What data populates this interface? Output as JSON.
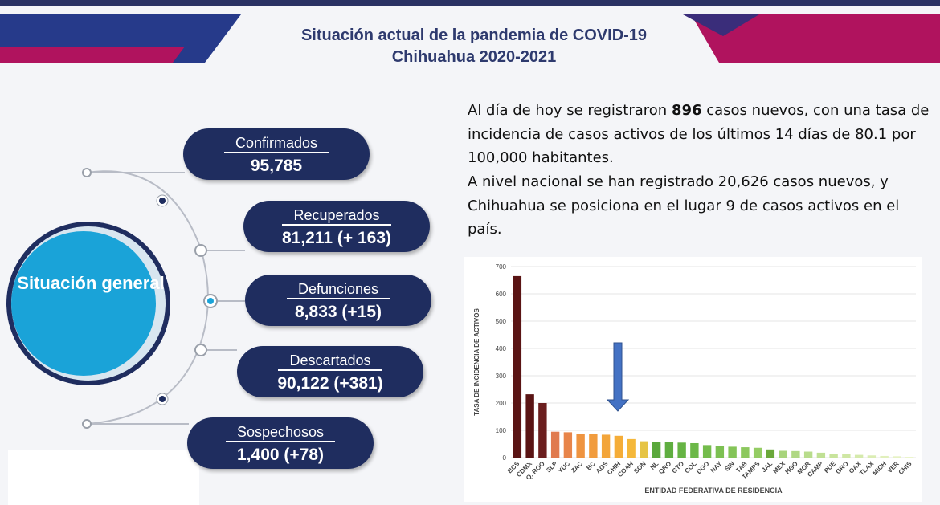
{
  "header": {
    "title_line1": "Situación actual de la pandemia de COVID-19",
    "title_line2": "Chihuahua 2020-2021"
  },
  "center": "Situación general",
  "cards": [
    {
      "label": "Confirmados",
      "value": "95,785"
    },
    {
      "label": "Recuperados",
      "value": "81,211 (+ 163)"
    },
    {
      "label": "Defunciones",
      "value": "8,833 (+15)"
    },
    {
      "label": "Descartados",
      "value": "90,122 (+381)"
    },
    {
      "label": "Sospechosos",
      "value": "1,400 (+78)"
    }
  ],
  "paragraph1": {
    "before": "Al día de hoy se registraron ",
    "bold": "896",
    "after": " casos nuevos, con una tasa de incidencia de casos activos de los últimos 14 días de 80.1 por 100,000 habitantes."
  },
  "paragraph2": "A nivel nacional se han registrado 20,626 casos nuevos, y Chihuahua se posiciona en el lugar 9 de casos activos en el país.",
  "chart_data": {
    "type": "bar",
    "y_label": "TASA DE INCIDENCIA DE ACTIVOS",
    "x_label": "ENTIDAD FEDERATIVA DE RESIDENCIA",
    "categories": [
      "BCS",
      "CDMX",
      "Q. ROO",
      "SLP",
      "YUC",
      "ZAC",
      "BC",
      "AGS",
      "CHIH",
      "COAH",
      "SON",
      "NL",
      "QRO",
      "GTO",
      "COL",
      "DGO",
      "NAY",
      "SIN",
      "TAB",
      "TAMPS",
      "JAL",
      "MEX",
      "HGO",
      "MOR",
      "CAMP",
      "PUE",
      "GRO",
      "OAX",
      "TLAX",
      "MICH",
      "VER",
      "CHIS"
    ],
    "values": [
      665,
      232,
      200,
      95,
      93,
      88,
      86,
      84,
      80,
      68,
      60,
      58,
      56,
      55,
      53,
      46,
      42,
      40,
      38,
      36,
      30,
      25,
      24,
      22,
      18,
      14,
      12,
      10,
      8,
      6,
      5,
      3
    ],
    "colors": [
      "#5a1414",
      "#5a1414",
      "#6b1e1e",
      "#e07a4e",
      "#e8854a",
      "#ef9440",
      "#f19c3e",
      "#f3a53a",
      "#f5ad38",
      "#f5b83a",
      "#e6c445",
      "#5aa83c",
      "#5fae40",
      "#66b444",
      "#6cb848",
      "#74bc4c",
      "#7cc052",
      "#84c458",
      "#8cc85e",
      "#94cc64",
      "#6aa83a",
      "#a8d47c",
      "#b0d884",
      "#b8dc8c",
      "#c0e094",
      "#c8e49c",
      "#cfe7a4",
      "#d5eaac",
      "#dbedb4",
      "#e1f0bc",
      "#e6f2c4",
      "#ebf5cc"
    ],
    "ylim": [
      0,
      700
    ],
    "yticks": [
      0,
      100,
      200,
      300,
      400,
      500,
      600,
      700
    ],
    "grid": true
  }
}
